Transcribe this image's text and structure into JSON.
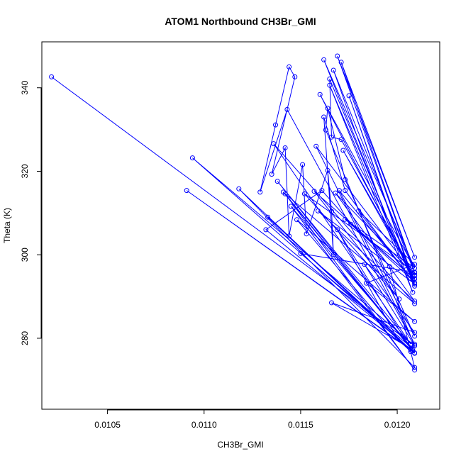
{
  "chart_data": {
    "type": "line",
    "title": "ATOM1 Northbound CH3Br_GMI",
    "xlabel": "CH3Br_GMI",
    "ylabel": "Theta (K)",
    "xlim": [
      0.01016,
      0.01222
    ],
    "ylim": [
      263.0,
      351.0
    ],
    "x_ticks": [
      0.0105,
      0.011,
      0.0115,
      0.012
    ],
    "x_tick_labels": [
      "0.0105",
      "0.0110",
      "0.0115",
      "0.0120"
    ],
    "y_ticks": [
      280,
      300,
      320,
      340
    ],
    "y_tick_labels": [
      "280",
      "300",
      "320",
      "340"
    ],
    "grid": false,
    "series_color": "#0000ff",
    "series": [
      {
        "marker": "open-circle",
        "x": [
          0.01021,
          0.01209,
          0.01094,
          0.01207,
          0.01091,
          0.01208,
          0.01132,
          0.01161,
          0.01196,
          0.01209,
          0.01118,
          0.01207,
          0.01133,
          0.01209,
          0.01141,
          0.01209,
          0.01136,
          0.01207,
          0.01138,
          0.01209,
          0.01142,
          0.01209,
          0.01145,
          0.01208,
          0.0115,
          0.01209,
          0.01152,
          0.01201,
          0.01157,
          0.01209,
          0.0116,
          0.01209,
          0.01162,
          0.01209,
          0.01165,
          0.01208,
          0.01167,
          0.01209,
          0.01169,
          0.01209,
          0.01171,
          0.01208,
          0.01173,
          0.01209,
          0.01176,
          0.01207,
          0.0118,
          0.01209,
          0.01184,
          0.01209,
          0.01148,
          0.012,
          0.01169,
          0.01207,
          0.01166,
          0.01209,
          0.01183,
          0.01209,
          0.01163,
          0.01164,
          0.01173,
          0.01209,
          0.0117,
          0.01209,
          0.01175,
          0.01208,
          0.01165,
          0.01166,
          0.01171,
          0.01209,
          0.01158,
          0.01209,
          0.01143,
          0.01129,
          0.01137,
          0.01144,
          0.01147,
          0.01135,
          0.01142,
          0.01144,
          0.01151,
          0.01153,
          0.01164,
          0.01166,
          0.01167,
          0.01162,
          0.01173,
          0.01209,
          0.01159,
          0.01209,
          0.01168,
          0.01209,
          0.01172,
          0.01209
        ],
        "y": [
          342.6,
          278.2,
          323.2,
          277.2,
          315.4,
          277.0,
          306.0,
          315.4,
          297.2,
          273.0,
          315.8,
          276.8,
          309.0,
          276.4,
          315.0,
          288.3,
          326.6,
          278.6,
          317.6,
          276.5,
          314.6,
          272.4,
          311.6,
          277.5,
          300.3,
          295.8,
          314.6,
          289.4,
          315.2,
          294.2,
          338.4,
          296.8,
          346.7,
          292.5,
          340.6,
          291.0,
          344.2,
          295.7,
          347.6,
          299.4,
          346.1,
          297.2,
          308.5,
          294.2,
          307.3,
          294.3,
          310.5,
          297.7,
          293.2,
          284.0,
          308.4,
          280.0,
          306.0,
          277.5,
          288.5,
          281.4,
          297.7,
          278.2,
          329.9,
          335.1,
          318.0,
          280.5,
          315.4,
          293.3,
          338.1,
          294.1,
          342.1,
          328.2,
          327.6,
          295.0,
          326.0,
          278.6,
          334.8,
          315.0,
          331.1,
          345.0,
          342.6,
          319.3,
          325.6,
          304.5,
          321.6,
          305.0,
          320.2,
          310.4,
          300.0,
          333.0,
          315.4,
          293.0,
          310.5,
          288.9,
          314.8,
          295.1,
          325.0,
          294.3
        ]
      }
    ]
  }
}
